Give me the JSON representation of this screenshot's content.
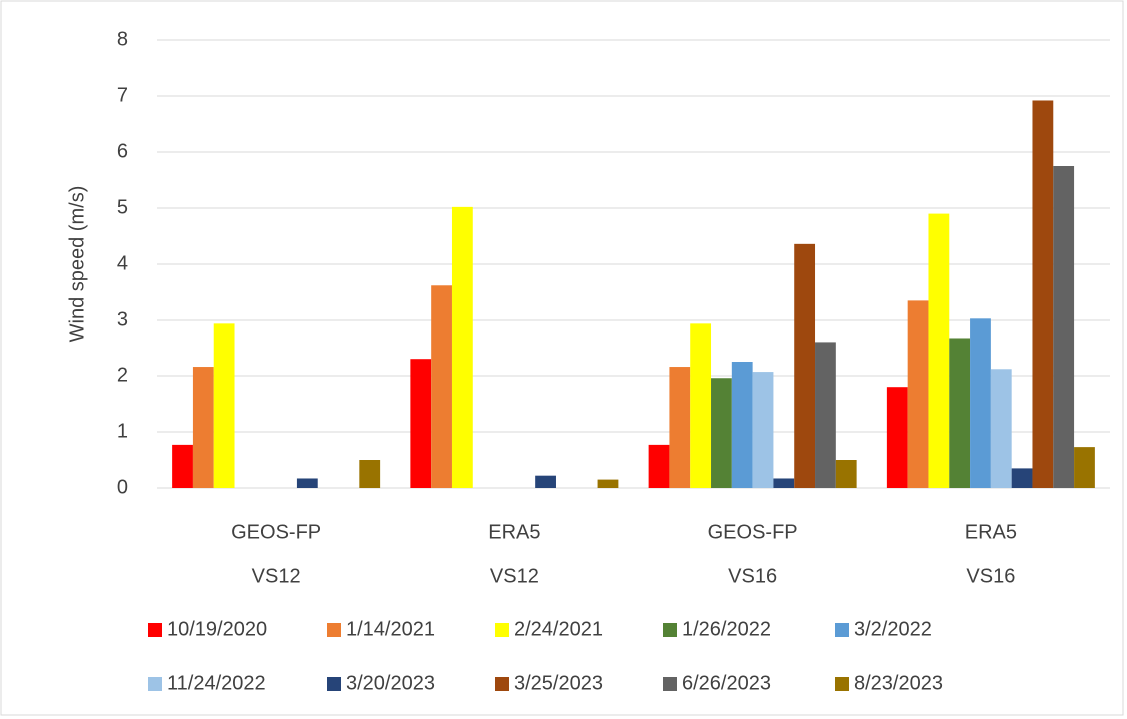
{
  "chart_data": {
    "type": "bar",
    "y_label": "Wind speed (m/s)",
    "categories": [
      "GEOS-FP",
      "ERA5",
      "GEOS-FP",
      "ERA5"
    ],
    "groups": [
      "VS12",
      "VS12",
      "VS16",
      "VS16"
    ],
    "series": [
      {
        "name": "10/19/2020",
        "color": "#ff0000",
        "values": [
          0.77,
          2.3,
          0.77,
          1.8
        ]
      },
      {
        "name": "1/14/2021",
        "color": "#ed7d31",
        "values": [
          2.16,
          3.62,
          2.16,
          3.35
        ]
      },
      {
        "name": "2/24/2021",
        "color": "#ffff00",
        "values": [
          2.94,
          5.02,
          2.94,
          4.9
        ]
      },
      {
        "name": "1/26/2022",
        "color": "#548235",
        "values": [
          null,
          null,
          1.96,
          2.67
        ]
      },
      {
        "name": "3/2/2022",
        "color": "#5b9bd5",
        "values": [
          null,
          null,
          2.25,
          3.03
        ]
      },
      {
        "name": "11/24/2022",
        "color": "#9dc3e6",
        "values": [
          null,
          null,
          2.07,
          2.12
        ]
      },
      {
        "name": "3/20/2023",
        "color": "#264478",
        "values": [
          0.17,
          0.22,
          0.17,
          0.35
        ]
      },
      {
        "name": "3/25/2023",
        "color": "#9e480e",
        "values": [
          null,
          null,
          4.36,
          6.92
        ]
      },
      {
        "name": "6/26/2023",
        "color": "#636363",
        "values": [
          null,
          null,
          2.6,
          5.75
        ]
      },
      {
        "name": "8/23/2023",
        "color": "#997300",
        "values": [
          0.5,
          0.15,
          0.5,
          0.73
        ]
      }
    ],
    "ylim": [
      0,
      8
    ],
    "yticks": [
      0,
      1,
      2,
      3,
      4,
      5,
      6,
      7,
      8
    ],
    "grid": true,
    "legend": "bottom"
  }
}
